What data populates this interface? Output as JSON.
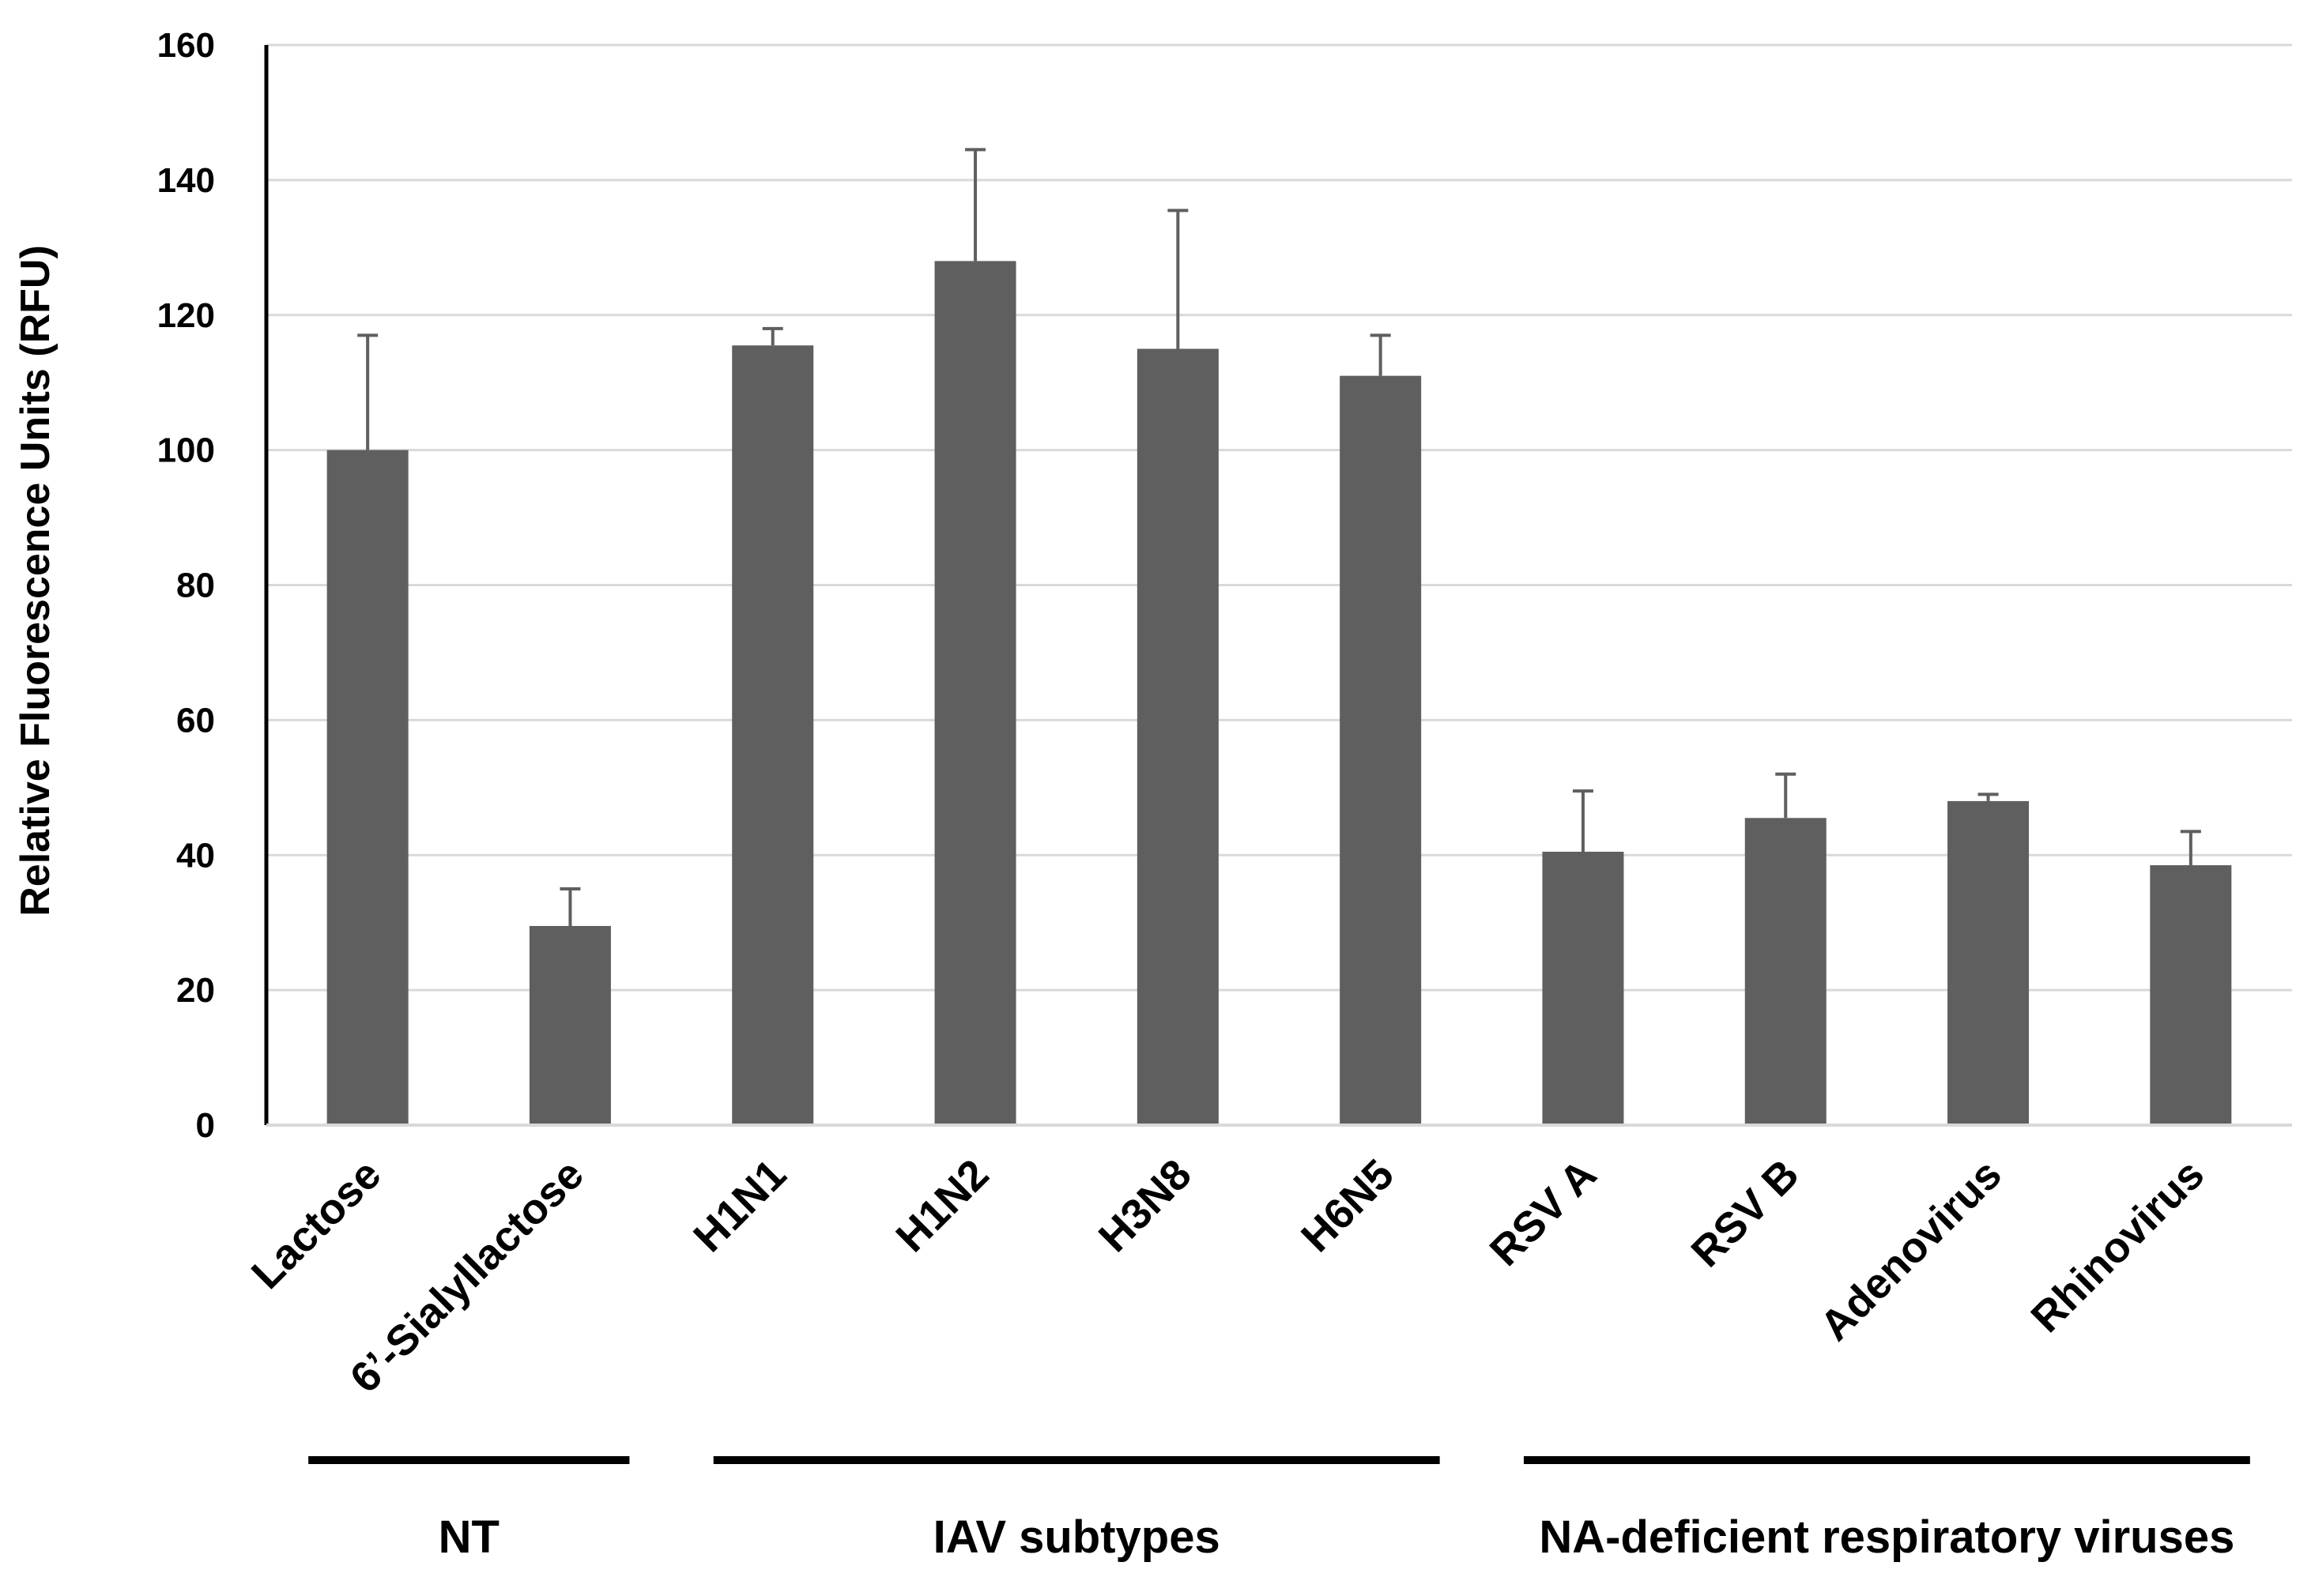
{
  "colors": {
    "bar": "#5f5f5f",
    "grid": "#d9d9d9",
    "axis": "#000000",
    "error_bar": "#5f5f5f",
    "group_line": "#000000"
  },
  "chart_data": {
    "type": "bar",
    "title": "",
    "xlabel": "",
    "ylabel": "Relative Fluorescence Units (RFU)",
    "ylim": [
      0,
      160
    ],
    "yticks": [
      0,
      20,
      40,
      60,
      80,
      100,
      120,
      140,
      160
    ],
    "grid": true,
    "categories": [
      "Lactose",
      "6’-Sialyllactose",
      "H1N1",
      "H1N2",
      "H3N8",
      "H6N5",
      "RSV A",
      "RSV B",
      "Adenovirus",
      "Rhinovirus"
    ],
    "values": [
      100,
      29.5,
      115.5,
      128,
      115,
      111,
      40.5,
      45.5,
      48,
      38.5
    ],
    "error_upper": [
      17,
      5.5,
      2.5,
      16.5,
      20.5,
      6,
      9,
      6.5,
      1,
      5
    ],
    "groups": [
      {
        "label": "NT",
        "start": 0,
        "end": 1
      },
      {
        "label": "IAV subtypes",
        "start": 2,
        "end": 5
      },
      {
        "label": "NA-deficient respiratory viruses",
        "start": 6,
        "end": 9
      }
    ]
  }
}
